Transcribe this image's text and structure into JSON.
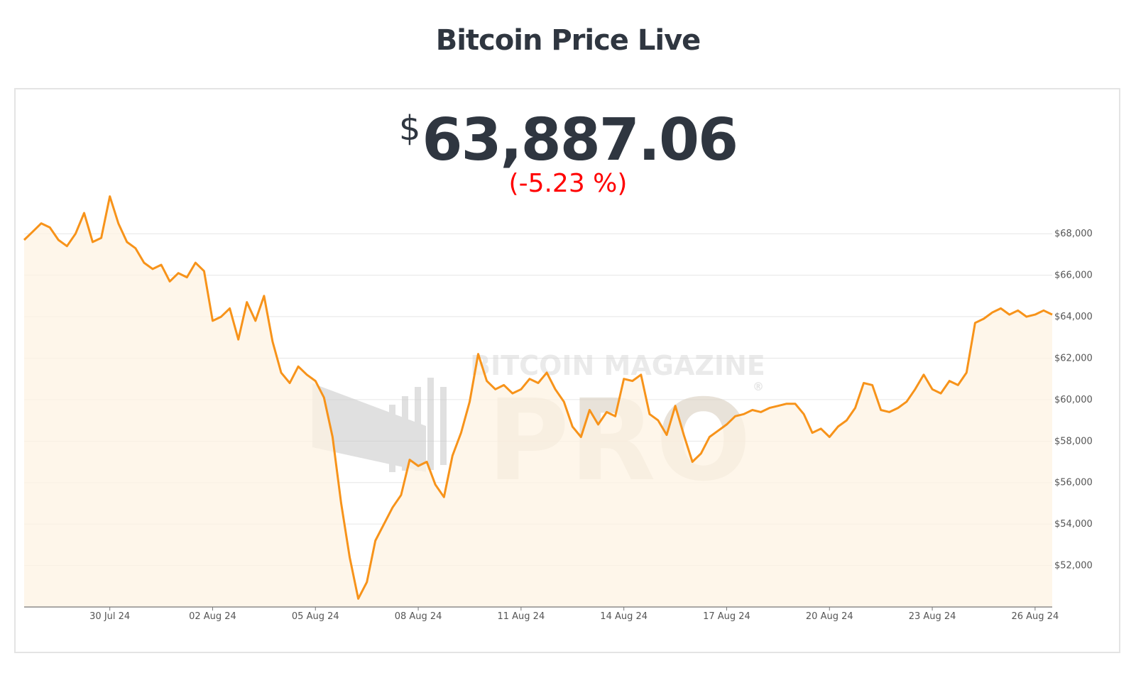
{
  "header": {
    "title": "Bitcoin Price Live"
  },
  "price": {
    "currency_symbol": "$",
    "value": "63,887.06",
    "change": "(-5.23 %)",
    "change_color": "#ff0000"
  },
  "watermark": {
    "line1": "BITCOIN MAGAZINE",
    "line2": "PRO",
    "registered": "®"
  },
  "colors": {
    "line": "#f7931a",
    "area": "#fdf3e3",
    "grid": "#e6e6e6",
    "axis": "#777777",
    "text": "#2f3640"
  },
  "chart_data": {
    "type": "area",
    "title": "",
    "xlabel": "",
    "ylabel": "",
    "x_domain": [
      "2024-07-27T12:00",
      "2024-08-26T12:00"
    ],
    "ylim": [
      50000,
      69000
    ],
    "y_ticks": [
      52000,
      54000,
      56000,
      58000,
      60000,
      62000,
      64000,
      66000,
      68000
    ],
    "y_tick_labels": [
      "$52,000",
      "$54,000",
      "$56,000",
      "$58,000",
      "$60,000",
      "$62,000",
      "$64,000",
      "$66,000",
      "$68,000"
    ],
    "x_ticks": [
      "2024-07-30",
      "2024-08-02",
      "2024-08-05",
      "2024-08-08",
      "2024-08-11",
      "2024-08-14",
      "2024-08-17",
      "2024-08-20",
      "2024-08-23",
      "2024-08-26"
    ],
    "x_tick_labels": [
      "30 Jul 24",
      "02 Aug 24",
      "05 Aug 24",
      "08 Aug 24",
      "11 Aug 24",
      "14 Aug 24",
      "17 Aug 24",
      "20 Aug 24",
      "23 Aug 24",
      "26 Aug 24"
    ],
    "grid": true,
    "legend": "none",
    "series": [
      {
        "color": "#f7931a",
        "x": [
          "2024-07-27T12:00",
          "2024-07-27T18:00",
          "2024-07-28T00:00",
          "2024-07-28T06:00",
          "2024-07-28T12:00",
          "2024-07-28T18:00",
          "2024-07-29T00:00",
          "2024-07-29T06:00",
          "2024-07-29T12:00",
          "2024-07-29T18:00",
          "2024-07-30T00:00",
          "2024-07-30T06:00",
          "2024-07-30T12:00",
          "2024-07-30T18:00",
          "2024-07-31T00:00",
          "2024-07-31T06:00",
          "2024-07-31T12:00",
          "2024-07-31T18:00",
          "2024-08-01T00:00",
          "2024-08-01T06:00",
          "2024-08-01T12:00",
          "2024-08-01T18:00",
          "2024-08-02T00:00",
          "2024-08-02T06:00",
          "2024-08-02T12:00",
          "2024-08-02T18:00",
          "2024-08-03T00:00",
          "2024-08-03T06:00",
          "2024-08-03T12:00",
          "2024-08-03T18:00",
          "2024-08-04T00:00",
          "2024-08-04T06:00",
          "2024-08-04T12:00",
          "2024-08-04T18:00",
          "2024-08-05T00:00",
          "2024-08-05T06:00",
          "2024-08-05T12:00",
          "2024-08-05T18:00",
          "2024-08-06T00:00",
          "2024-08-06T06:00",
          "2024-08-06T12:00",
          "2024-08-06T18:00",
          "2024-08-07T00:00",
          "2024-08-07T06:00",
          "2024-08-07T12:00",
          "2024-08-07T18:00",
          "2024-08-08T00:00",
          "2024-08-08T06:00",
          "2024-08-08T12:00",
          "2024-08-08T18:00",
          "2024-08-09T00:00",
          "2024-08-09T06:00",
          "2024-08-09T12:00",
          "2024-08-09T18:00",
          "2024-08-10T00:00",
          "2024-08-10T06:00",
          "2024-08-10T12:00",
          "2024-08-10T18:00",
          "2024-08-11T00:00",
          "2024-08-11T06:00",
          "2024-08-11T12:00",
          "2024-08-11T18:00",
          "2024-08-12T00:00",
          "2024-08-12T06:00",
          "2024-08-12T12:00",
          "2024-08-12T18:00",
          "2024-08-13T00:00",
          "2024-08-13T06:00",
          "2024-08-13T12:00",
          "2024-08-13T18:00",
          "2024-08-14T00:00",
          "2024-08-14T06:00",
          "2024-08-14T12:00",
          "2024-08-14T18:00",
          "2024-08-15T00:00",
          "2024-08-15T06:00",
          "2024-08-15T12:00",
          "2024-08-15T18:00",
          "2024-08-16T00:00",
          "2024-08-16T06:00",
          "2024-08-16T12:00",
          "2024-08-16T18:00",
          "2024-08-17T00:00",
          "2024-08-17T06:00",
          "2024-08-17T12:00",
          "2024-08-17T18:00",
          "2024-08-18T00:00",
          "2024-08-18T06:00",
          "2024-08-18T12:00",
          "2024-08-18T18:00",
          "2024-08-19T00:00",
          "2024-08-19T06:00",
          "2024-08-19T12:00",
          "2024-08-19T18:00",
          "2024-08-20T00:00",
          "2024-08-20T06:00",
          "2024-08-20T12:00",
          "2024-08-20T18:00",
          "2024-08-21T00:00",
          "2024-08-21T06:00",
          "2024-08-21T12:00",
          "2024-08-21T18:00",
          "2024-08-22T00:00",
          "2024-08-22T06:00",
          "2024-08-22T12:00",
          "2024-08-22T18:00",
          "2024-08-23T00:00",
          "2024-08-23T06:00",
          "2024-08-23T12:00",
          "2024-08-23T18:00",
          "2024-08-24T00:00",
          "2024-08-24T06:00",
          "2024-08-24T12:00",
          "2024-08-24T18:00",
          "2024-08-25T00:00",
          "2024-08-25T06:00",
          "2024-08-25T12:00",
          "2024-08-25T18:00",
          "2024-08-26T00:00",
          "2024-08-26T06:00",
          "2024-08-26T12:00"
        ],
        "y": [
          67700,
          68100,
          68500,
          68300,
          67700,
          67400,
          68000,
          69000,
          67600,
          67800,
          69800,
          68500,
          67600,
          67300,
          66600,
          66300,
          66500,
          65700,
          66100,
          65900,
          66600,
          66200,
          63800,
          64000,
          64400,
          62900,
          64700,
          63800,
          65000,
          62800,
          61300,
          60800,
          61600,
          61200,
          60900,
          60100,
          58200,
          55000,
          52400,
          50400,
          51200,
          53200,
          54000,
          54800,
          55400,
          57100,
          56800,
          57000,
          55900,
          55300,
          57300,
          58400,
          59900,
          62200,
          60900,
          60500,
          60700,
          60300,
          60500,
          61000,
          60800,
          61300,
          60500,
          59900,
          58700,
          58200,
          59500,
          58800,
          59400,
          59200,
          61000,
          60900,
          61200,
          59300,
          59000,
          58300,
          59700,
          58300,
          57000,
          57400,
          58200,
          58500,
          58800,
          59200,
          59300,
          59500,
          59400,
          59600,
          59700,
          59800,
          59800,
          59300,
          58400,
          58600,
          58200,
          58700,
          59000,
          59600,
          60800,
          60700,
          59500,
          59400,
          59600,
          59900,
          60500,
          61200,
          60500,
          60300,
          60900,
          60700,
          61300,
          63700,
          63900,
          64200,
          64400,
          64100,
          64300,
          64000,
          64100,
          64300,
          64100
        ]
      }
    ]
  }
}
